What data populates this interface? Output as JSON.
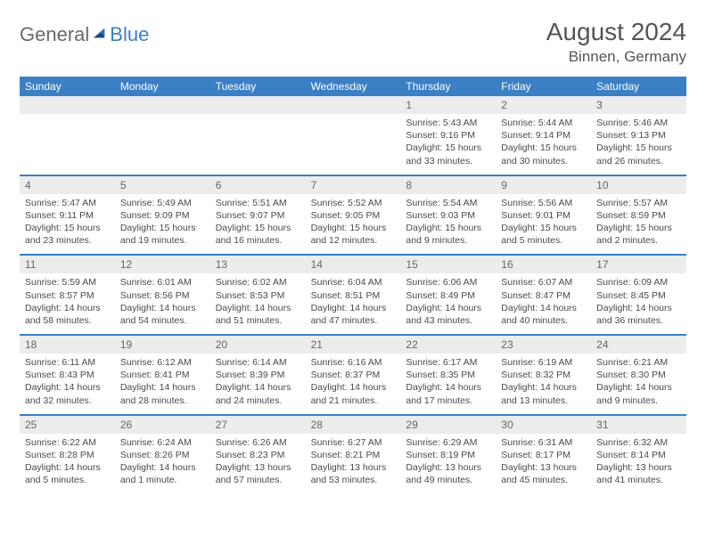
{
  "logo": {
    "text1": "General",
    "text2": "Blue"
  },
  "title": "August 2024",
  "location": "Binnen, Germany",
  "colors": {
    "header_bg": "#3b7fc4",
    "header_text": "#ffffff",
    "daynum_bg": "#ececec",
    "daynum_text": "#666666",
    "body_text": "#4a4a4a",
    "title_text": "#555555",
    "row_divider": "#3b7fc4"
  },
  "day_labels": [
    "Sunday",
    "Monday",
    "Tuesday",
    "Wednesday",
    "Thursday",
    "Friday",
    "Saturday"
  ],
  "weeks": [
    [
      {
        "n": "",
        "sr": "",
        "ss": "",
        "dl": ""
      },
      {
        "n": "",
        "sr": "",
        "ss": "",
        "dl": ""
      },
      {
        "n": "",
        "sr": "",
        "ss": "",
        "dl": ""
      },
      {
        "n": "",
        "sr": "",
        "ss": "",
        "dl": ""
      },
      {
        "n": "1",
        "sr": "Sunrise: 5:43 AM",
        "ss": "Sunset: 9:16 PM",
        "dl": "Daylight: 15 hours and 33 minutes."
      },
      {
        "n": "2",
        "sr": "Sunrise: 5:44 AM",
        "ss": "Sunset: 9:14 PM",
        "dl": "Daylight: 15 hours and 30 minutes."
      },
      {
        "n": "3",
        "sr": "Sunrise: 5:46 AM",
        "ss": "Sunset: 9:13 PM",
        "dl": "Daylight: 15 hours and 26 minutes."
      }
    ],
    [
      {
        "n": "4",
        "sr": "Sunrise: 5:47 AM",
        "ss": "Sunset: 9:11 PM",
        "dl": "Daylight: 15 hours and 23 minutes."
      },
      {
        "n": "5",
        "sr": "Sunrise: 5:49 AM",
        "ss": "Sunset: 9:09 PM",
        "dl": "Daylight: 15 hours and 19 minutes."
      },
      {
        "n": "6",
        "sr": "Sunrise: 5:51 AM",
        "ss": "Sunset: 9:07 PM",
        "dl": "Daylight: 15 hours and 16 minutes."
      },
      {
        "n": "7",
        "sr": "Sunrise: 5:52 AM",
        "ss": "Sunset: 9:05 PM",
        "dl": "Daylight: 15 hours and 12 minutes."
      },
      {
        "n": "8",
        "sr": "Sunrise: 5:54 AM",
        "ss": "Sunset: 9:03 PM",
        "dl": "Daylight: 15 hours and 9 minutes."
      },
      {
        "n": "9",
        "sr": "Sunrise: 5:56 AM",
        "ss": "Sunset: 9:01 PM",
        "dl": "Daylight: 15 hours and 5 minutes."
      },
      {
        "n": "10",
        "sr": "Sunrise: 5:57 AM",
        "ss": "Sunset: 8:59 PM",
        "dl": "Daylight: 15 hours and 2 minutes."
      }
    ],
    [
      {
        "n": "11",
        "sr": "Sunrise: 5:59 AM",
        "ss": "Sunset: 8:57 PM",
        "dl": "Daylight: 14 hours and 58 minutes."
      },
      {
        "n": "12",
        "sr": "Sunrise: 6:01 AM",
        "ss": "Sunset: 8:56 PM",
        "dl": "Daylight: 14 hours and 54 minutes."
      },
      {
        "n": "13",
        "sr": "Sunrise: 6:02 AM",
        "ss": "Sunset: 8:53 PM",
        "dl": "Daylight: 14 hours and 51 minutes."
      },
      {
        "n": "14",
        "sr": "Sunrise: 6:04 AM",
        "ss": "Sunset: 8:51 PM",
        "dl": "Daylight: 14 hours and 47 minutes."
      },
      {
        "n": "15",
        "sr": "Sunrise: 6:06 AM",
        "ss": "Sunset: 8:49 PM",
        "dl": "Daylight: 14 hours and 43 minutes."
      },
      {
        "n": "16",
        "sr": "Sunrise: 6:07 AM",
        "ss": "Sunset: 8:47 PM",
        "dl": "Daylight: 14 hours and 40 minutes."
      },
      {
        "n": "17",
        "sr": "Sunrise: 6:09 AM",
        "ss": "Sunset: 8:45 PM",
        "dl": "Daylight: 14 hours and 36 minutes."
      }
    ],
    [
      {
        "n": "18",
        "sr": "Sunrise: 6:11 AM",
        "ss": "Sunset: 8:43 PM",
        "dl": "Daylight: 14 hours and 32 minutes."
      },
      {
        "n": "19",
        "sr": "Sunrise: 6:12 AM",
        "ss": "Sunset: 8:41 PM",
        "dl": "Daylight: 14 hours and 28 minutes."
      },
      {
        "n": "20",
        "sr": "Sunrise: 6:14 AM",
        "ss": "Sunset: 8:39 PM",
        "dl": "Daylight: 14 hours and 24 minutes."
      },
      {
        "n": "21",
        "sr": "Sunrise: 6:16 AM",
        "ss": "Sunset: 8:37 PM",
        "dl": "Daylight: 14 hours and 21 minutes."
      },
      {
        "n": "22",
        "sr": "Sunrise: 6:17 AM",
        "ss": "Sunset: 8:35 PM",
        "dl": "Daylight: 14 hours and 17 minutes."
      },
      {
        "n": "23",
        "sr": "Sunrise: 6:19 AM",
        "ss": "Sunset: 8:32 PM",
        "dl": "Daylight: 14 hours and 13 minutes."
      },
      {
        "n": "24",
        "sr": "Sunrise: 6:21 AM",
        "ss": "Sunset: 8:30 PM",
        "dl": "Daylight: 14 hours and 9 minutes."
      }
    ],
    [
      {
        "n": "25",
        "sr": "Sunrise: 6:22 AM",
        "ss": "Sunset: 8:28 PM",
        "dl": "Daylight: 14 hours and 5 minutes."
      },
      {
        "n": "26",
        "sr": "Sunrise: 6:24 AM",
        "ss": "Sunset: 8:26 PM",
        "dl": "Daylight: 14 hours and 1 minute."
      },
      {
        "n": "27",
        "sr": "Sunrise: 6:26 AM",
        "ss": "Sunset: 8:23 PM",
        "dl": "Daylight: 13 hours and 57 minutes."
      },
      {
        "n": "28",
        "sr": "Sunrise: 6:27 AM",
        "ss": "Sunset: 8:21 PM",
        "dl": "Daylight: 13 hours and 53 minutes."
      },
      {
        "n": "29",
        "sr": "Sunrise: 6:29 AM",
        "ss": "Sunset: 8:19 PM",
        "dl": "Daylight: 13 hours and 49 minutes."
      },
      {
        "n": "30",
        "sr": "Sunrise: 6:31 AM",
        "ss": "Sunset: 8:17 PM",
        "dl": "Daylight: 13 hours and 45 minutes."
      },
      {
        "n": "31",
        "sr": "Sunrise: 6:32 AM",
        "ss": "Sunset: 8:14 PM",
        "dl": "Daylight: 13 hours and 41 minutes."
      }
    ]
  ]
}
